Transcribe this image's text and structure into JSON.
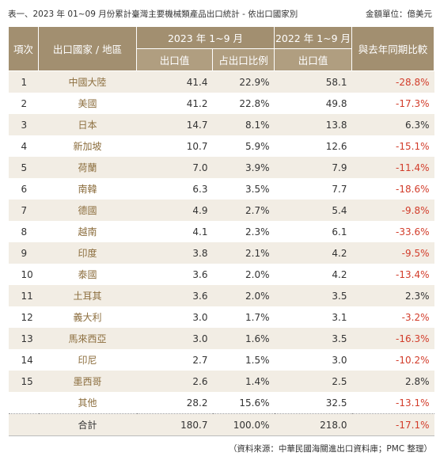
{
  "header": {
    "title": "表一、2023 年 01~09 月份累計臺灣主要機械類產品出口統計 - 依出口國家別",
    "unit": "金額單位：億美元"
  },
  "table": {
    "headers": {
      "rank": "項次",
      "country": "出口國家 / 地區",
      "period_2023": "2023 年 1~9 月",
      "period_2022": "2022 年 1~9 月",
      "change": "與去年同期比較",
      "value_2023": "出口值",
      "share_2023": "占出口比例",
      "value_2022": "出口值"
    },
    "rows": [
      [
        "1",
        "中國大陸",
        "41.4",
        "22.9%",
        "58.1",
        "-28.8%"
      ],
      [
        "2",
        "美國",
        "41.2",
        "22.8%",
        "49.8",
        "-17.3%"
      ],
      [
        "3",
        "日本",
        "14.7",
        "8.1%",
        "13.8",
        "6.3%"
      ],
      [
        "4",
        "新加坡",
        "10.7",
        "5.9%",
        "12.6",
        "-15.1%"
      ],
      [
        "5",
        "荷蘭",
        "7.0",
        "3.9%",
        "7.9",
        "-11.4%"
      ],
      [
        "6",
        "南韓",
        "6.3",
        "3.5%",
        "7.7",
        "-18.6%"
      ],
      [
        "7",
        "德國",
        "4.9",
        "2.7%",
        "5.4",
        "-9.8%"
      ],
      [
        "8",
        "越南",
        "4.1",
        "2.3%",
        "6.1",
        "-33.6%"
      ],
      [
        "9",
        "印度",
        "3.8",
        "2.1%",
        "4.2",
        "-9.5%"
      ],
      [
        "10",
        "泰國",
        "3.6",
        "2.0%",
        "4.2",
        "-13.4%"
      ],
      [
        "11",
        "土耳其",
        "3.6",
        "2.0%",
        "3.5",
        "2.3%"
      ],
      [
        "12",
        "義大利",
        "3.0",
        "1.7%",
        "3.1",
        "-3.2%"
      ],
      [
        "13",
        "馬來西亞",
        "3.0",
        "1.6%",
        "3.5",
        "-16.3%"
      ],
      [
        "14",
        "印尼",
        "2.7",
        "1.5%",
        "3.0",
        "-10.2%"
      ],
      [
        "15",
        "墨西哥",
        "2.6",
        "1.4%",
        "2.5",
        "2.8%"
      ],
      [
        "其他",
        "28.2",
        "15.6%",
        "32.5",
        "-13.1%"
      ]
    ],
    "total": [
      "合計",
      "180.7",
      "100.0%",
      "218.0",
      "-17.1%"
    ]
  },
  "footer": {
    "source": "（資料來源：中華民國海關進出口資料庫；PMC 整理）"
  }
}
